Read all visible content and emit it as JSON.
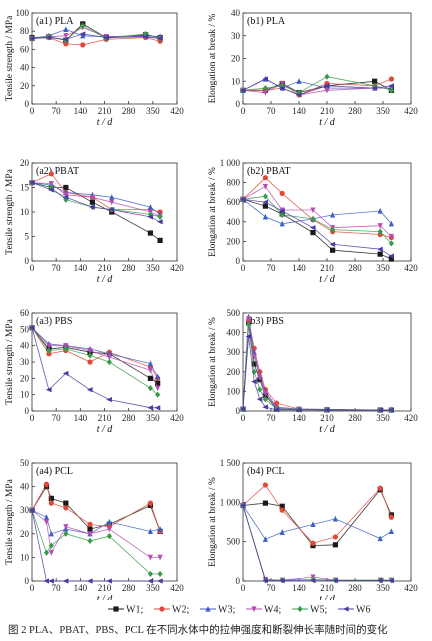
{
  "figure": {
    "caption": "图 2   PLA、PBAT、PBS、PCL 在不同水体中的拉伸强度和断裂伸长率随时间的变化",
    "series_colors": {
      "W1": "#1a1a1a",
      "W2": "#e0483a",
      "W3": "#3b5fc4",
      "W4": "#b64bb0",
      "W5": "#3a9a4a",
      "W6": "#4b3aa5"
    },
    "series_markers": {
      "W1": "square",
      "W2": "circle",
      "W3": "triangle-up",
      "W4": "triangle-down",
      "W5": "diamond",
      "W6": "triangle-left"
    }
  },
  "legend": [
    "W1;",
    "W2;",
    "W3;",
    "W4;",
    "W5;",
    "W6"
  ],
  "chart_data": [
    {
      "panel": "a1",
      "type": "line",
      "title": "(a1) PLA",
      "xlabel": "t / d",
      "ylabel": "Tensile strength / MPa",
      "xlim": [
        0,
        420
      ],
      "ylim": [
        0,
        100
      ],
      "xticks": [
        "0",
        "70",
        "140",
        "210",
        "280",
        "350",
        "420"
      ],
      "yticks": [
        "0",
        "20",
        "40",
        "60",
        "80",
        "100"
      ],
      "x": [
        0,
        49,
        98,
        147,
        215,
        329,
        371
      ],
      "series": [
        {
          "name": "W1",
          "values": [
            73,
            74,
            70,
            88,
            73,
            76,
            73
          ]
        },
        {
          "name": "W2",
          "values": [
            72,
            73,
            66,
            65,
            71,
            73,
            69
          ]
        },
        {
          "name": "W3",
          "values": [
            72,
            75,
            82,
            75,
            74,
            75,
            74
          ]
        },
        {
          "name": "W4",
          "values": [
            72,
            74,
            75,
            84,
            74,
            74,
            72
          ]
        },
        {
          "name": "W5",
          "values": [
            72,
            74,
            70,
            86,
            72,
            77,
            72
          ]
        },
        {
          "name": "W6",
          "values": [
            72,
            73,
            71,
            77,
            73,
            74,
            72
          ]
        }
      ]
    },
    {
      "panel": "b1",
      "type": "line",
      "title": "(b1) PLA",
      "xlabel": "t / d",
      "ylabel": "Elongation at break / %",
      "xlim": [
        0,
        420
      ],
      "ylim": [
        0,
        40
      ],
      "xticks": [
        "0",
        "70",
        "140",
        "210",
        "280",
        "350",
        "420"
      ],
      "yticks": [
        "0",
        "10",
        "20",
        "30",
        "40"
      ],
      "x": [
        0,
        56,
        98,
        140,
        210,
        329,
        371
      ],
      "series": [
        {
          "name": "W1",
          "values": [
            6,
            6,
            9,
            5,
            8,
            10,
            6
          ]
        },
        {
          "name": "W2",
          "values": [
            6,
            6,
            7,
            4,
            9,
            8,
            11
          ]
        },
        {
          "name": "W3",
          "values": [
            6,
            11,
            7,
            10,
            7,
            7,
            7
          ]
        },
        {
          "name": "W4",
          "values": [
            6,
            5,
            9,
            4,
            6,
            7,
            7
          ]
        },
        {
          "name": "W5",
          "values": [
            6,
            7,
            8,
            5,
            12,
            8,
            6
          ]
        },
        {
          "name": "W6",
          "values": [
            6,
            11,
            7,
            4,
            8,
            7,
            8
          ]
        }
      ]
    },
    {
      "panel": "a2",
      "type": "line",
      "title": "(a2) PBAT",
      "xlabel": "t / d",
      "ylabel": "Tensile strength / MPa",
      "xlim": [
        0,
        420
      ],
      "ylim": [
        0,
        20
      ],
      "xticks": [
        "0",
        "70",
        "140",
        "210",
        "280",
        "350",
        "420"
      ],
      "yticks": [
        "0",
        "5",
        "10",
        "15",
        "20"
      ],
      "x": [
        0,
        56,
        98,
        175,
        231,
        343,
        371
      ],
      "series": [
        {
          "name": "W1",
          "values": [
            16,
            15,
            15,
            12,
            10,
            5.7,
            4.2
          ]
        },
        {
          "name": "W2",
          "values": [
            16,
            17.8,
            14,
            13,
            10.5,
            10.5,
            10
          ]
        },
        {
          "name": "W3",
          "values": [
            16,
            15.5,
            14,
            13.5,
            13,
            11,
            9.5
          ]
        },
        {
          "name": "W4",
          "values": [
            16,
            15.8,
            13.5,
            13,
            12,
            10,
            9
          ]
        },
        {
          "name": "W5",
          "values": [
            16,
            15,
            12.5,
            11,
            10.5,
            9.5,
            9
          ]
        },
        {
          "name": "W6",
          "values": [
            16,
            14.5,
            13,
            11,
            10.5,
            9,
            8
          ]
        }
      ]
    },
    {
      "panel": "b2",
      "type": "line",
      "title": "(b2) PBAT",
      "xlabel": "t / d",
      "ylabel": "Elongation at break / %",
      "xlim": [
        0,
        420
      ],
      "ylim": [
        0,
        1000
      ],
      "xticks": [
        "0",
        "70",
        "140",
        "210",
        "280",
        "350",
        "420"
      ],
      "yticks": [
        "0",
        "200",
        "400",
        "600",
        "800",
        "1 000"
      ],
      "x": [
        0,
        56,
        98,
        175,
        224,
        343,
        371
      ],
      "series": [
        {
          "name": "W1",
          "values": [
            630,
            560,
            480,
            290,
            110,
            70,
            20
          ]
        },
        {
          "name": "W2",
          "values": [
            630,
            850,
            690,
            420,
            300,
            270,
            240
          ]
        },
        {
          "name": "W3",
          "values": [
            630,
            450,
            380,
            430,
            470,
            510,
            380
          ]
        },
        {
          "name": "W4",
          "values": [
            630,
            760,
            520,
            520,
            340,
            360,
            250
          ]
        },
        {
          "name": "W5",
          "values": [
            630,
            660,
            470,
            430,
            320,
            300,
            180
          ]
        },
        {
          "name": "W6",
          "values": [
            630,
            600,
            510,
            340,
            170,
            120,
            50
          ]
        }
      ]
    },
    {
      "panel": "a3",
      "type": "line",
      "title": "(a3) PBS",
      "xlabel": "t / d",
      "ylabel": "Tensile strength / MPa",
      "xlim": [
        0,
        420
      ],
      "ylim": [
        0,
        60
      ],
      "xticks": [
        "0",
        "70",
        "140",
        "210",
        "280",
        "350",
        "420"
      ],
      "yticks": [
        "0",
        "10",
        "20",
        "30",
        "40",
        "50",
        "60"
      ],
      "x": [
        0,
        49,
        98,
        168,
        224,
        343,
        364
      ],
      "series": [
        {
          "name": "W1",
          "values": [
            51,
            38,
            39,
            36,
            35,
            20,
            17
          ]
        },
        {
          "name": "W2",
          "values": [
            51,
            35,
            37,
            30,
            36,
            27,
            20
          ]
        },
        {
          "name": "W3",
          "values": [
            51,
            41,
            40,
            38,
            35,
            29,
            21
          ]
        },
        {
          "name": "W4",
          "values": [
            51,
            40,
            40,
            37,
            33,
            25,
            14
          ]
        },
        {
          "name": "W5",
          "values": [
            51,
            37,
            38,
            34,
            30,
            14,
            10
          ]
        },
        {
          "name": "W6",
          "values": [
            51,
            13,
            23,
            13,
            7,
            2,
            2
          ]
        }
      ]
    },
    {
      "panel": "b3",
      "type": "line",
      "title": "(b3) PBS",
      "xlabel": "t / d",
      "ylabel": "Elongation at break / %",
      "xlim": [
        0,
        420
      ],
      "ylim": [
        0,
        500
      ],
      "xticks": [
        "0",
        "70",
        "140",
        "210",
        "280",
        "350",
        "420"
      ],
      "yticks": [
        "0",
        "100",
        "200",
        "300",
        "400",
        "500"
      ],
      "x": [
        0,
        14,
        28,
        42,
        56,
        84,
        140,
        210,
        343,
        371
      ],
      "series": [
        {
          "name": "W1",
          "values": [
            10,
            450,
            240,
            160,
            80,
            10,
            8,
            6,
            5,
            5
          ]
        },
        {
          "name": "W2",
          "values": [
            10,
            460,
            320,
            200,
            110,
            40,
            10,
            8,
            5,
            5
          ]
        },
        {
          "name": "W3",
          "values": [
            10,
            480,
            300,
            180,
            100,
            20,
            10,
            8,
            5,
            5
          ]
        },
        {
          "name": "W4",
          "values": [
            10,
            470,
            280,
            170,
            90,
            15,
            8,
            6,
            5,
            5
          ]
        },
        {
          "name": "W5",
          "values": [
            10,
            440,
            200,
            110,
            60,
            10,
            8,
            6,
            5,
            5
          ]
        },
        {
          "name": "W6",
          "values": [
            10,
            380,
            150,
            60,
            20,
            6,
            5,
            5,
            5,
            5
          ]
        }
      ]
    },
    {
      "panel": "a4",
      "type": "line",
      "title": "(a4) PCL",
      "xlabel": "t / d",
      "ylabel": "Tensile strength / MPa",
      "xlim": [
        0,
        420
      ],
      "ylim": [
        0,
        50
      ],
      "xticks": [
        "0",
        "70",
        "140",
        "210",
        "280",
        "350",
        "420"
      ],
      "yticks": [
        "0",
        "10",
        "20",
        "30",
        "40",
        "50"
      ],
      "x": [
        0,
        42,
        56,
        98,
        168,
        224,
        343,
        371
      ],
      "series": [
        {
          "name": "W1",
          "values": [
            30,
            40,
            35,
            33,
            22,
            24,
            32,
            21
          ]
        },
        {
          "name": "W2",
          "values": [
            30,
            41,
            33,
            31,
            24,
            23,
            33,
            21
          ]
        },
        {
          "name": "W3",
          "values": [
            30,
            27,
            20,
            22,
            20,
            25,
            21,
            22
          ]
        },
        {
          "name": "W4",
          "values": [
            30,
            25,
            12,
            23,
            20,
            22,
            10,
            10
          ]
        },
        {
          "name": "W5",
          "values": [
            30,
            12,
            15,
            20,
            17,
            19,
            3,
            3
          ]
        },
        {
          "name": "W6",
          "values": [
            30,
            0,
            0,
            0,
            0,
            0,
            0,
            0
          ]
        }
      ]
    },
    {
      "panel": "b4",
      "type": "line",
      "title": "(b4) PCL",
      "xlabel": "t / d",
      "ylabel": "Elongation at break / %",
      "xlim": [
        0,
        420
      ],
      "ylim": [
        0,
        1500
      ],
      "xticks": [
        "0",
        "70",
        "140",
        "210",
        "280",
        "350",
        "420"
      ],
      "yticks": [
        "0",
        "500",
        "1 000",
        "1 500"
      ],
      "x": [
        0,
        56,
        98,
        175,
        231,
        343,
        371
      ],
      "series": [
        {
          "name": "W1",
          "values": [
            960,
            990,
            950,
            450,
            460,
            1160,
            840
          ]
        },
        {
          "name": "W2",
          "values": [
            960,
            1220,
            900,
            480,
            560,
            1180,
            810
          ]
        },
        {
          "name": "W3",
          "values": [
            960,
            530,
            620,
            720,
            790,
            540,
            630
          ]
        },
        {
          "name": "W4",
          "values": [
            960,
            20,
            10,
            50,
            10,
            10,
            10
          ]
        },
        {
          "name": "W5",
          "values": [
            960,
            10,
            10,
            20,
            10,
            10,
            10
          ]
        },
        {
          "name": "W6",
          "values": [
            960,
            5,
            5,
            5,
            5,
            5,
            5
          ]
        }
      ]
    }
  ]
}
